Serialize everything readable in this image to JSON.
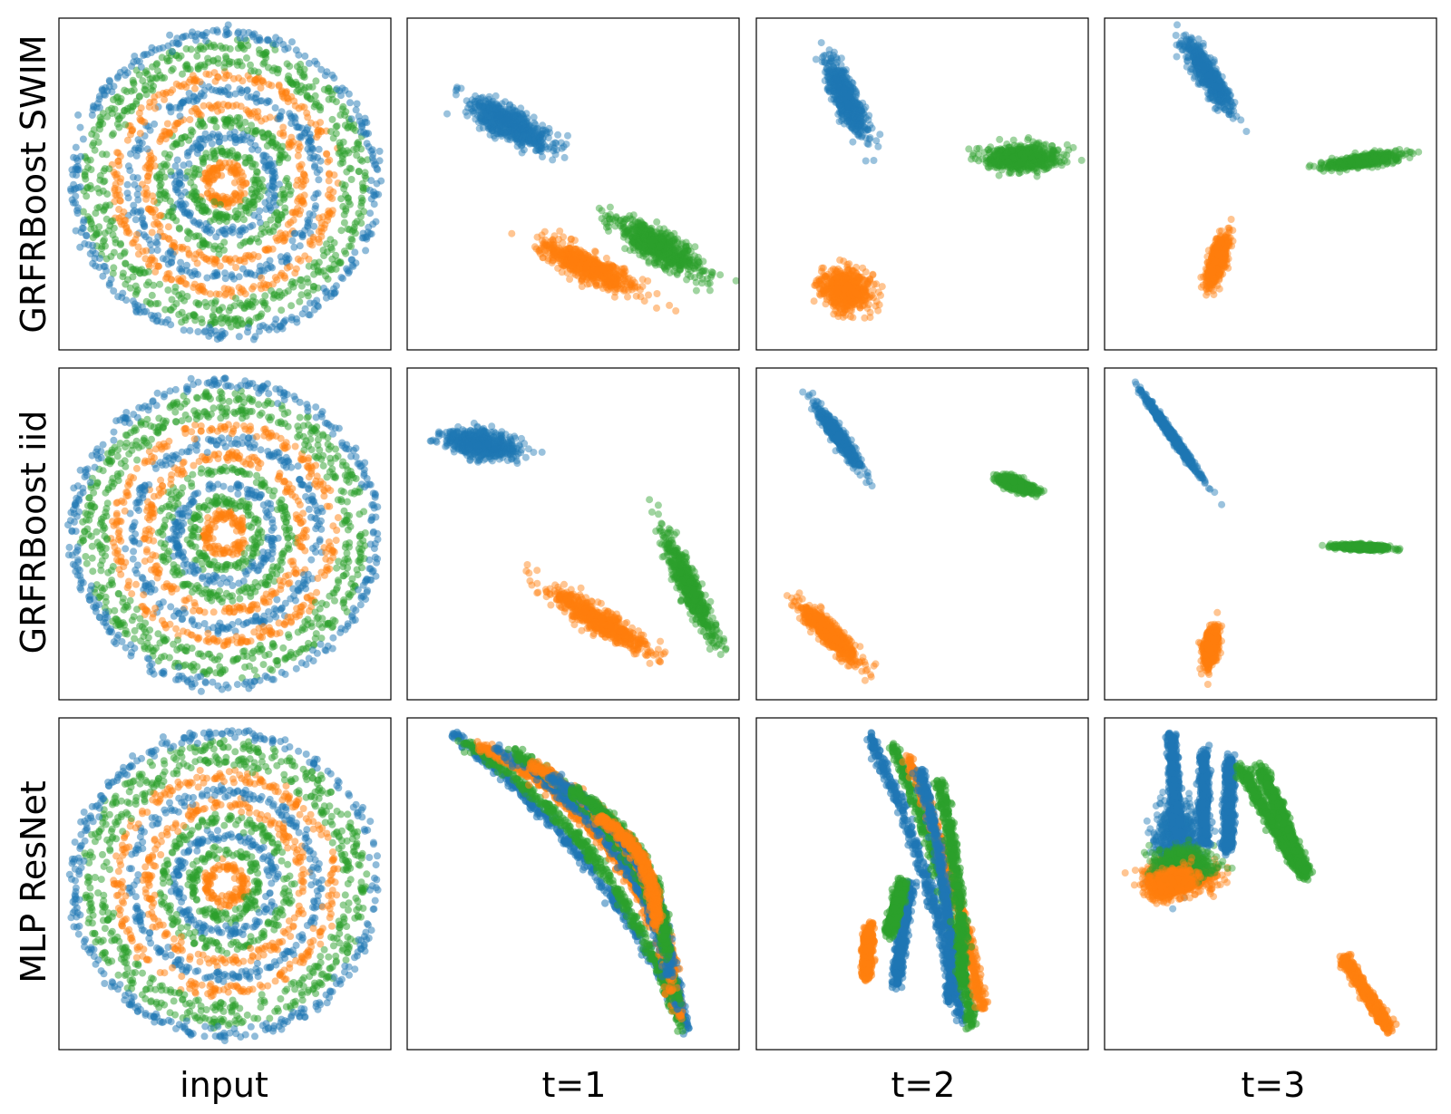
{
  "chart_data": {
    "type": "scatter",
    "layout": "3x4 grid of scatter panels (rows = models, columns = layer steps)",
    "row_labels": [
      "GRFRBoost SWIM",
      "GRFRBoost iid",
      "MLP ResNet"
    ],
    "col_labels": [
      "input",
      "t=1",
      "t=2",
      "t=3"
    ],
    "axes": {
      "ticks": false,
      "grid": false,
      "frame": true,
      "xlim": [
        0,
        1
      ],
      "ylim": [
        0,
        1
      ]
    },
    "legend": "none",
    "series": [
      {
        "class": 0,
        "color": "#1f77b4"
      },
      {
        "class": 1,
        "color": "#ff7f0e"
      },
      {
        "class": 2,
        "color": "#2ca02c"
      }
    ],
    "input_rings": {
      "center": [
        0.5,
        0.5
      ],
      "radii": [
        0.055,
        0.1,
        0.145,
        0.19,
        0.235,
        0.28,
        0.325,
        0.37,
        0.415,
        0.455
      ],
      "ring_classes": [
        1,
        2,
        0,
        2,
        1,
        0,
        1,
        2,
        2,
        0
      ]
    },
    "panels": [
      {
        "row": 0,
        "col": 1,
        "clusters": [
          {
            "class": 0,
            "center": [
              0.31,
              0.68
            ],
            "spread": [
              0.115,
              0.04
            ],
            "angle": -28
          },
          {
            "class": 1,
            "center": [
              0.55,
              0.25
            ],
            "spread": [
              0.14,
              0.035
            ],
            "angle": -25
          },
          {
            "class": 2,
            "center": [
              0.76,
              0.31
            ],
            "spread": [
              0.13,
              0.04
            ],
            "angle": -30
          }
        ]
      },
      {
        "row": 0,
        "col": 2,
        "clusters": [
          {
            "class": 0,
            "center": [
              0.27,
              0.76
            ],
            "spread": [
              0.11,
              0.03
            ],
            "angle": -65
          },
          {
            "class": 1,
            "center": [
              0.27,
              0.18
            ],
            "spread": [
              0.07,
              0.05
            ],
            "angle": -15
          },
          {
            "class": 2,
            "center": [
              0.8,
              0.58
            ],
            "spread": [
              0.1,
              0.035
            ],
            "angle": 0
          }
        ]
      },
      {
        "row": 0,
        "col": 3,
        "clusters": [
          {
            "class": 0,
            "center": [
              0.31,
              0.83
            ],
            "spread": [
              0.11,
              0.025
            ],
            "angle": -58
          },
          {
            "class": 1,
            "center": [
              0.34,
              0.27
            ],
            "spread": [
              0.07,
              0.02
            ],
            "angle": 72
          },
          {
            "class": 2,
            "center": [
              0.78,
              0.57
            ],
            "spread": [
              0.1,
              0.015
            ],
            "angle": 8
          }
        ]
      },
      {
        "row": 1,
        "col": 1,
        "clusters": [
          {
            "class": 0,
            "center": [
              0.22,
              0.77
            ],
            "spread": [
              0.1,
              0.035
            ],
            "angle": -10
          },
          {
            "class": 1,
            "center": [
              0.58,
              0.24
            ],
            "spread": [
              0.16,
              0.03
            ],
            "angle": -32
          },
          {
            "class": 2,
            "center": [
              0.85,
              0.34
            ],
            "spread": [
              0.15,
              0.025
            ],
            "angle": -65
          }
        ]
      },
      {
        "row": 1,
        "col": 2,
        "clusters": [
          {
            "class": 0,
            "center": [
              0.25,
              0.79
            ],
            "spread": [
              0.1,
              0.015
            ],
            "angle": -55
          },
          {
            "class": 1,
            "center": [
              0.22,
              0.2
            ],
            "spread": [
              0.11,
              0.025
            ],
            "angle": -45
          },
          {
            "class": 2,
            "center": [
              0.78,
              0.65
            ],
            "spread": [
              0.05,
              0.015
            ],
            "angle": -18
          }
        ]
      },
      {
        "row": 1,
        "col": 3,
        "clusters": [
          {
            "class": 0,
            "center": [
              0.2,
              0.8
            ],
            "spread": [
              0.13,
              0.008
            ],
            "angle": -55
          },
          {
            "class": 1,
            "center": [
              0.32,
              0.16
            ],
            "spread": [
              0.05,
              0.018
            ],
            "angle": 80
          },
          {
            "class": 2,
            "center": [
              0.78,
              0.46
            ],
            "spread": [
              0.07,
              0.007
            ],
            "angle": -2
          }
        ]
      },
      {
        "row": 2,
        "col": 1,
        "arcs": [
          {
            "class": 0,
            "from": [
              0.14,
              0.95
            ],
            "to": [
              0.85,
              0.06
            ],
            "bend": 0.07
          },
          {
            "class": 2,
            "from": [
              0.17,
              0.93
            ],
            "to": [
              0.82,
              0.07
            ],
            "bend": 0.1
          },
          {
            "class": 1,
            "from": [
              0.21,
              0.92
            ],
            "to": [
              0.82,
              0.1
            ],
            "bend": 0.13
          },
          {
            "class": 0,
            "from": [
              0.26,
              0.91
            ],
            "to": [
              0.82,
              0.12
            ],
            "bend": 0.12
          },
          {
            "class": 2,
            "from": [
              0.31,
              0.9
            ],
            "to": [
              0.81,
              0.15
            ],
            "bend": 0.12
          },
          {
            "class": 1,
            "from": [
              0.37,
              0.86
            ],
            "to": [
              0.8,
              0.18
            ],
            "bend": 0.12
          },
          {
            "class": 0,
            "from": [
              0.43,
              0.82
            ],
            "to": [
              0.79,
              0.22
            ],
            "bend": 0.1
          },
          {
            "class": 2,
            "from": [
              0.5,
              0.78
            ],
            "to": [
              0.78,
              0.28
            ],
            "bend": 0.08
          },
          {
            "class": 1,
            "from": [
              0.58,
              0.7
            ],
            "to": [
              0.75,
              0.38
            ],
            "bend": 0.05
          }
        ]
      },
      {
        "row": 2,
        "col": 2,
        "arcs": [
          {
            "class": 0,
            "from": [
              0.34,
              0.95
            ],
            "to": [
              0.62,
              0.08
            ],
            "bend": 0.03
          },
          {
            "class": 2,
            "from": [
              0.41,
              0.92
            ],
            "to": [
              0.65,
              0.06
            ],
            "bend": 0.03
          },
          {
            "class": 1,
            "from": [
              0.46,
              0.88
            ],
            "to": [
              0.68,
              0.12
            ],
            "bend": 0.02
          },
          {
            "class": 0,
            "from": [
              0.49,
              0.85
            ],
            "to": [
              0.58,
              0.14
            ],
            "bend": 0.03
          },
          {
            "class": 2,
            "from": [
              0.55,
              0.81
            ],
            "to": [
              0.62,
              0.2
            ],
            "bend": 0.02
          },
          {
            "class": 0,
            "from": [
              0.42,
              0.2
            ],
            "to": [
              0.46,
              0.5
            ],
            "bend": 0
          },
          {
            "class": 2,
            "from": [
              0.4,
              0.35
            ],
            "to": [
              0.44,
              0.5
            ],
            "bend": 0
          },
          {
            "class": 1,
            "from": [
              0.33,
              0.22
            ],
            "to": [
              0.34,
              0.37
            ],
            "bend": 0
          }
        ]
      },
      {
        "row": 2,
        "col": 3,
        "arcs": [
          {
            "class": 0,
            "from": [
              0.2,
              0.95
            ],
            "to": [
              0.22,
              0.65
            ],
            "bend": 0
          },
          {
            "class": 0,
            "from": [
              0.3,
              0.9
            ],
            "to": [
              0.3,
              0.62
            ],
            "bend": 0
          },
          {
            "class": 0,
            "from": [
              0.38,
              0.88
            ],
            "to": [
              0.37,
              0.6
            ],
            "bend": 0
          },
          {
            "class": 2,
            "from": [
              0.41,
              0.85
            ],
            "to": [
              0.6,
              0.52
            ],
            "bend": 0
          },
          {
            "class": 2,
            "from": [
              0.47,
              0.85
            ],
            "to": [
              0.61,
              0.53
            ],
            "bend": 0
          },
          {
            "class": 1,
            "from": [
              0.72,
              0.28
            ],
            "to": [
              0.86,
              0.06
            ],
            "bend": 0
          }
        ],
        "blobs": [
          {
            "class": 0,
            "center": [
              0.22,
              0.63
            ],
            "spread": [
              0.06,
              0.1
            ],
            "angle": 0
          },
          {
            "class": 1,
            "center": [
              0.23,
              0.52
            ],
            "spread": [
              0.09,
              0.04
            ],
            "angle": 0
          },
          {
            "class": 2,
            "center": [
              0.24,
              0.56
            ],
            "spread": [
              0.08,
              0.04
            ],
            "angle": 0
          },
          {
            "class": 1,
            "center": [
              0.2,
              0.5
            ],
            "spread": [
              0.06,
              0.035
            ],
            "angle": 20
          }
        ]
      }
    ]
  }
}
